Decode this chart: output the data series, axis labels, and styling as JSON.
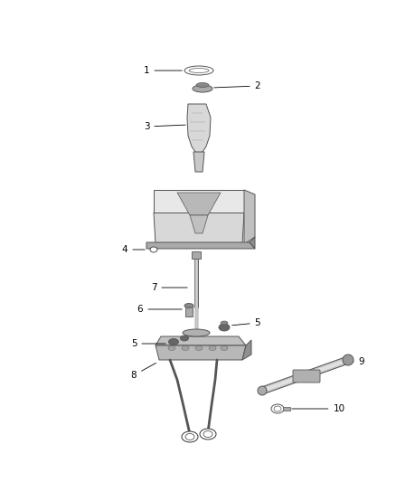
{
  "background_color": "#ffffff",
  "figsize": [
    4.38,
    5.33
  ],
  "dpi": 100,
  "line_color": "#555555",
  "dark_color": "#333333",
  "light_gray": "#d8d8d8",
  "mid_gray": "#aaaaaa",
  "label_fontsize": 7.5
}
